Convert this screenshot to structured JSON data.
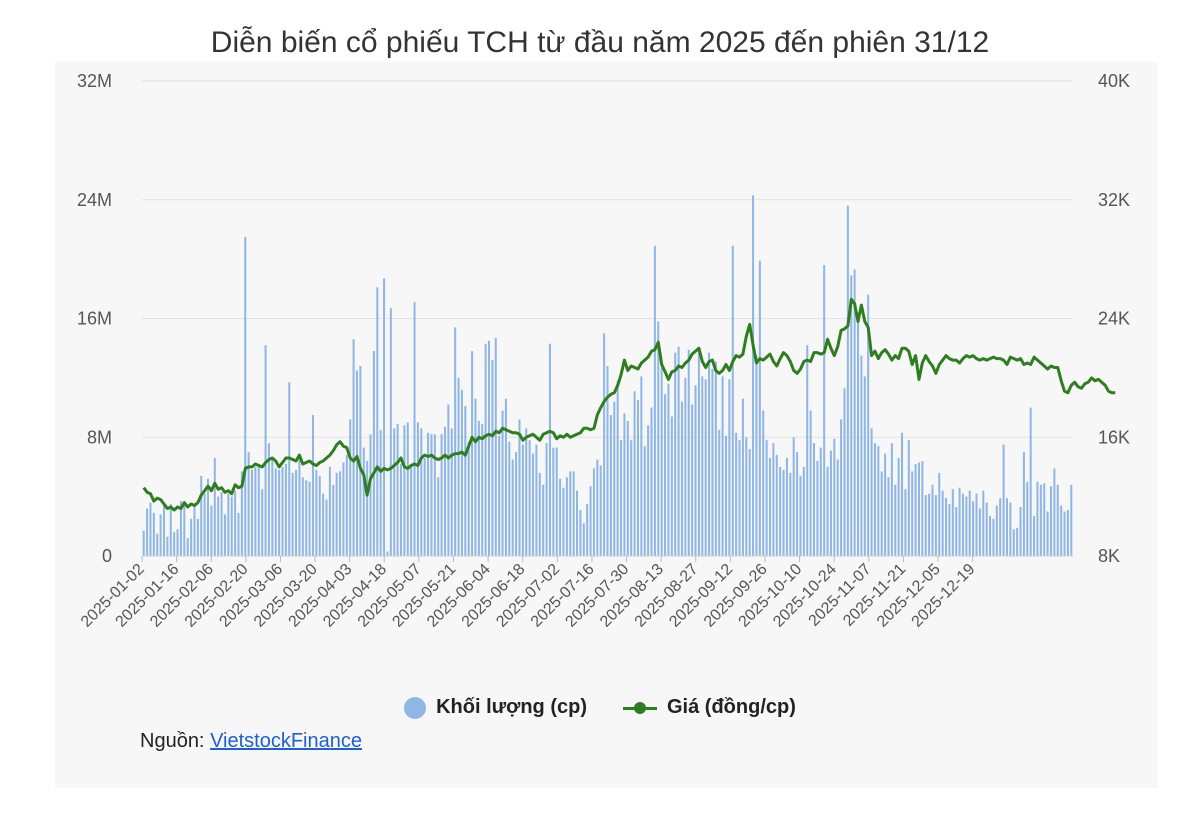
{
  "chart_data": {
    "type": "bar",
    "title": "Diễn biến cổ phiếu TCH từ đầu năm 2025 đến phiên 31/12",
    "y_left_ticks": [
      "0",
      "8M",
      "16M",
      "24M",
      "32M"
    ],
    "y_right_ticks": [
      "8K",
      "16K",
      "24K",
      "32K",
      "40K"
    ],
    "ylim_left": [
      0,
      32000000
    ],
    "ylim_right": [
      8000,
      40000
    ],
    "x_ticks": [
      "2025-01-02",
      "2025-01-16",
      "2025-02-06",
      "2025-02-20",
      "2025-03-06",
      "2025-03-20",
      "2025-04-03",
      "2025-04-18",
      "2025-05-07",
      "2025-05-21",
      "2025-06-04",
      "2025-06-18",
      "2025-07-02",
      "2025-07-16",
      "2025-07-30",
      "2025-08-13",
      "2025-08-27",
      "2025-09-12",
      "2025-09-26",
      "2025-10-10",
      "2025-10-24",
      "2025-11-07",
      "2025-11-21",
      "2025-12-05",
      "2025-12-19"
    ],
    "grid": true,
    "legend_position": "bottom",
    "series": [
      {
        "name": "Khối lượng (cp)",
        "axis": "left",
        "type": "bar",
        "values": [
          1.7,
          3.2,
          3.6,
          2.9,
          1.5,
          2.8,
          3.6,
          1.3,
          3.5,
          1.6,
          1.8,
          3.7,
          3.5,
          1.2,
          2.5,
          3.4,
          2.5,
          5.4,
          4.2,
          5.2,
          3.4,
          6.6,
          4.0,
          4.3,
          2.8,
          4.2,
          4.0,
          4.4,
          2.9,
          5.7,
          21.5,
          7.0,
          5.8,
          6.0,
          6.0,
          4.5,
          14.2,
          7.6,
          6.6,
          5.9,
          5.8,
          6.0,
          6.2,
          11.7,
          5.6,
          5.8,
          6.8,
          5.3,
          5.1,
          5.0,
          9.5,
          5.8,
          5.4,
          4.2,
          3.8,
          6.0,
          4.8,
          5.6,
          5.7,
          6.3,
          6.8,
          9.2,
          14.6,
          12.5,
          12.8,
          7.3,
          6.4,
          8.2,
          13.8,
          18.1,
          8.5,
          18.7,
          0.3,
          16.7,
          8.6,
          8.9,
          6.2,
          8.8,
          9.0,
          6.2,
          17.1,
          9.0,
          8.6,
          6.6,
          8.3,
          8.2,
          8.2,
          5.3,
          8.2,
          8.7,
          10.2,
          8.6,
          15.4,
          12.0,
          11.2,
          10.1,
          7.7,
          13.8,
          10.6,
          9.1,
          8.9,
          14.3,
          14.5,
          13.2,
          14.7,
          8.1,
          9.8,
          10.6,
          7.7,
          6.5,
          7.0,
          9.2,
          7.5,
          8.6,
          7.8,
          6.9,
          7.5,
          5.6,
          4.8,
          7.6,
          14.3,
          7.3,
          7.3,
          5.2,
          4.6,
          5.3,
          5.7,
          5.7,
          4.4,
          3.1,
          2.2,
          3.5,
          4.7,
          5.9,
          6.5,
          6.1,
          15.0,
          12.8,
          9.5,
          10.4,
          11.8,
          7.8,
          9.6,
          9.1,
          7.8,
          11.1,
          10.5,
          12.1,
          7.4,
          8.8,
          10.0,
          20.9,
          15.8,
          12.7,
          10.9,
          11.6,
          9.4,
          13.7,
          14.1,
          10.4,
          12.0,
          13.9,
          10.2,
          11.5,
          14.0,
          12.1,
          11.9,
          13.7,
          12.6,
          13.1,
          8.5,
          12.1,
          8.1,
          11.9,
          20.9,
          8.3,
          7.8,
          10.6,
          8.0,
          7.2,
          24.3,
          13.5,
          19.9,
          9.8,
          7.8,
          6.6,
          7.6,
          6.8,
          6.0,
          5.8,
          6.6,
          5.6,
          8.0,
          7.0,
          5.4,
          6.0,
          14.2,
          9.8,
          7.6,
          6.4,
          7.3,
          19.6,
          6.0,
          7.1,
          7.9,
          6.5,
          9.2,
          11.3,
          23.6,
          18.9,
          19.3,
          16.4,
          13.5,
          12.1,
          17.6,
          8.6,
          7.6,
          7.4,
          5.7,
          6.9,
          5.3,
          7.6,
          4.8,
          6.6,
          8.3,
          4.5,
          7.8,
          5.7,
          6.2,
          6.3,
          6.4,
          4.1,
          4.2,
          4.8,
          4.1,
          5.6,
          4.4,
          3.9,
          3.5,
          4.5,
          3.3,
          4.6,
          4.2,
          4.0,
          4.4,
          3.7,
          4.2,
          3.2,
          4.4,
          3.6,
          2.7,
          2.5,
          3.4,
          3.9,
          7.5,
          3.9,
          3.6,
          1.8,
          1.9,
          3.3,
          7.0,
          5.0,
          10.0,
          2.7,
          5.0,
          4.8,
          4.9,
          3.0,
          4.7,
          5.9,
          4.8,
          3.4,
          3.0,
          3.1,
          4.8
        ]
      },
      {
        "name": "Giá (đồng/cp)",
        "axis": "right",
        "type": "line",
        "color": "#2e7d1e",
        "values": [
          12.6,
          12.3,
          12.2,
          11.7,
          11.9,
          11.8,
          11.5,
          11.2,
          11.3,
          11.1,
          11.3,
          11.2,
          11.6,
          11.3,
          11.5,
          11.4,
          11.6,
          12.1,
          12.4,
          12.7,
          12.4,
          12.9,
          12.5,
          12.6,
          12.3,
          12.4,
          12.2,
          12.8,
          12.6,
          12.7,
          13.9,
          14.0,
          14.0,
          14.2,
          14.1,
          14.0,
          14.3,
          14.5,
          14.6,
          14.4,
          14.0,
          14.3,
          14.6,
          14.6,
          14.5,
          14.4,
          14.8,
          14.2,
          14.3,
          14.4,
          14.2,
          14.1,
          14.3,
          14.4,
          14.6,
          14.8,
          15.1,
          15.5,
          15.7,
          15.4,
          15.3,
          14.6,
          14.4,
          14.7,
          13.9,
          13.5,
          12.1,
          13.2,
          13.6,
          14.0,
          13.7,
          13.9,
          13.8,
          13.9,
          14.1,
          14.3,
          14.6,
          14.0,
          13.9,
          14.1,
          14.2,
          14.1,
          14.6,
          14.8,
          14.7,
          14.8,
          14.6,
          14.5,
          14.6,
          14.8,
          14.6,
          14.8,
          14.9,
          14.9,
          15.0,
          14.8,
          15.4,
          16.0,
          15.7,
          16.0,
          15.9,
          16.1,
          16.2,
          16.1,
          16.4,
          16.3,
          16.6,
          16.5,
          16.4,
          16.3,
          16.3,
          16.2,
          15.8,
          16.0,
          16.1,
          16.2,
          16.0,
          15.8,
          16.2,
          16.3,
          16.4,
          16.3,
          15.9,
          16.1,
          16.0,
          16.2,
          16.0,
          16.1,
          16.2,
          16.3,
          16.6,
          16.6,
          16.5,
          16.6,
          17.5,
          18.0,
          18.4,
          18.7,
          18.9,
          19.0,
          19.5,
          20.2,
          21.2,
          20.5,
          20.8,
          20.7,
          20.6,
          21.0,
          21.2,
          21.4,
          21.8,
          21.9,
          22.4,
          20.9,
          20.4,
          19.9,
          20.4,
          20.5,
          20.8,
          20.7,
          21.0,
          21.2,
          21.6,
          21.8,
          22.0,
          21.1,
          20.7,
          21.1,
          21.2,
          20.5,
          20.3,
          20.5,
          20.9,
          20.5,
          21.1,
          21.5,
          21.4,
          21.6,
          22.8,
          23.6,
          22.2,
          21.0,
          21.3,
          21.2,
          21.4,
          21.6,
          21.1,
          20.8,
          21.3,
          21.7,
          21.5,
          21.1,
          20.5,
          20.3,
          20.6,
          21.1,
          21.2,
          21.1,
          21.7,
          21.7,
          21.6,
          21.7,
          22.6,
          22.0,
          21.5,
          22.1,
          23.2,
          23.3,
          23.5,
          25.3,
          25.0,
          23.8,
          24.9,
          23.8,
          23.4,
          21.5,
          21.8,
          21.3,
          21.7,
          21.9,
          21.6,
          21.2,
          21.5,
          21.3,
          22.0,
          22.0,
          21.8,
          20.9,
          21.5,
          19.9,
          21.0,
          21.5,
          21.1,
          20.8,
          20.3,
          20.9,
          21.2,
          21.5,
          21.3,
          21.2,
          21.2,
          21.0,
          21.3,
          21.5,
          21.4,
          21.5,
          21.3,
          21.2,
          21.3,
          21.2,
          21.3,
          21.4,
          21.3,
          21.3,
          21.2,
          20.9,
          21.4,
          21.3,
          21.2,
          21.3,
          20.9,
          21.0,
          20.9,
          21.4,
          21.2,
          21.0,
          20.8,
          20.6,
          20.8,
          20.7,
          20.7,
          19.8,
          19.1,
          19.0,
          19.5,
          19.7,
          19.4,
          19.3,
          19.6,
          19.7,
          20.0,
          19.8,
          19.9,
          19.7,
          19.5,
          19.1,
          19.0,
          19.0
        ]
      }
    ]
  },
  "legend": {
    "volume_label": "Khối lượng (cp)",
    "price_label": "Giá (đồng/cp)"
  },
  "source": {
    "label": "Nguồn:",
    "link_text": "VietstockFinance"
  },
  "colors": {
    "bar": "#8fb6e4",
    "line": "#2e7d1e",
    "panel": "#f7f7f7"
  }
}
